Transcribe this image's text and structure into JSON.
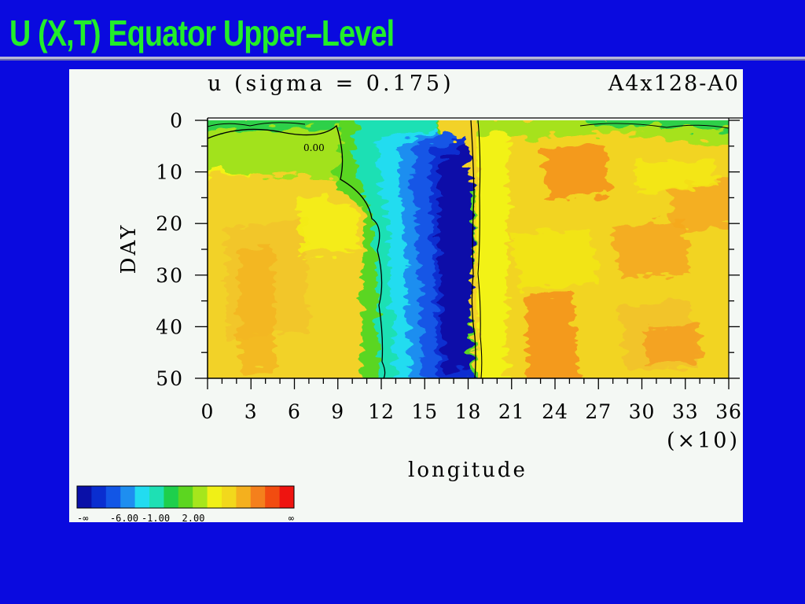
{
  "slide": {
    "title": "U (X,T) Equator Upper–Level",
    "title_color": "#22ee2a",
    "background_color": "#0a0adf"
  },
  "chart_data": {
    "type": "heatmap",
    "title": "u (sigma = 0.175)",
    "run_label": "A4x128-A0",
    "xlabel": "longitude",
    "x_scale_note": "(×10)",
    "ylabel": "DAY",
    "xlim": [
      0,
      36
    ],
    "ylim": [
      0,
      50
    ],
    "y_inverted": true,
    "x_ticks": [
      "0",
      "3",
      "6",
      "9",
      "12",
      "15",
      "18",
      "21",
      "24",
      "27",
      "30",
      "33",
      "36"
    ],
    "y_ticks": [
      "0",
      "10",
      "20",
      "30",
      "40",
      "50"
    ],
    "contour_label": "0.00",
    "colorbar": {
      "colors": [
        "#0a10a8",
        "#0a2ed0",
        "#1256e6",
        "#1e8ef0",
        "#22dcf0",
        "#1ee0b4",
        "#1ecf4c",
        "#5cd620",
        "#a6e61c",
        "#f0f016",
        "#f2d81c",
        "#f4b01e",
        "#f4801c",
        "#f24c10",
        "#ee1410"
      ],
      "labels": [
        "-∞",
        "-6.00",
        "-1.00",
        "2.00",
        "∞"
      ]
    },
    "value_ranges": [
      {
        "x_range": [
          0,
          10
        ],
        "days": [
          0,
          6
        ],
        "level": "green, near 0"
      },
      {
        "x_range": [
          0,
          11
        ],
        "days": [
          6,
          50
        ],
        "level": "yellow/light orange"
      },
      {
        "x_range": [
          11,
          14
        ],
        "days": [
          0,
          50
        ],
        "level": "green to cyan"
      },
      {
        "x_range": [
          14,
          18
        ],
        "days": [
          0,
          50
        ],
        "level": "blue to dark blue (minimum)"
      },
      {
        "x_range": [
          18,
          36
        ],
        "days": [
          2,
          50
        ],
        "level": "yellow to orange"
      }
    ]
  }
}
